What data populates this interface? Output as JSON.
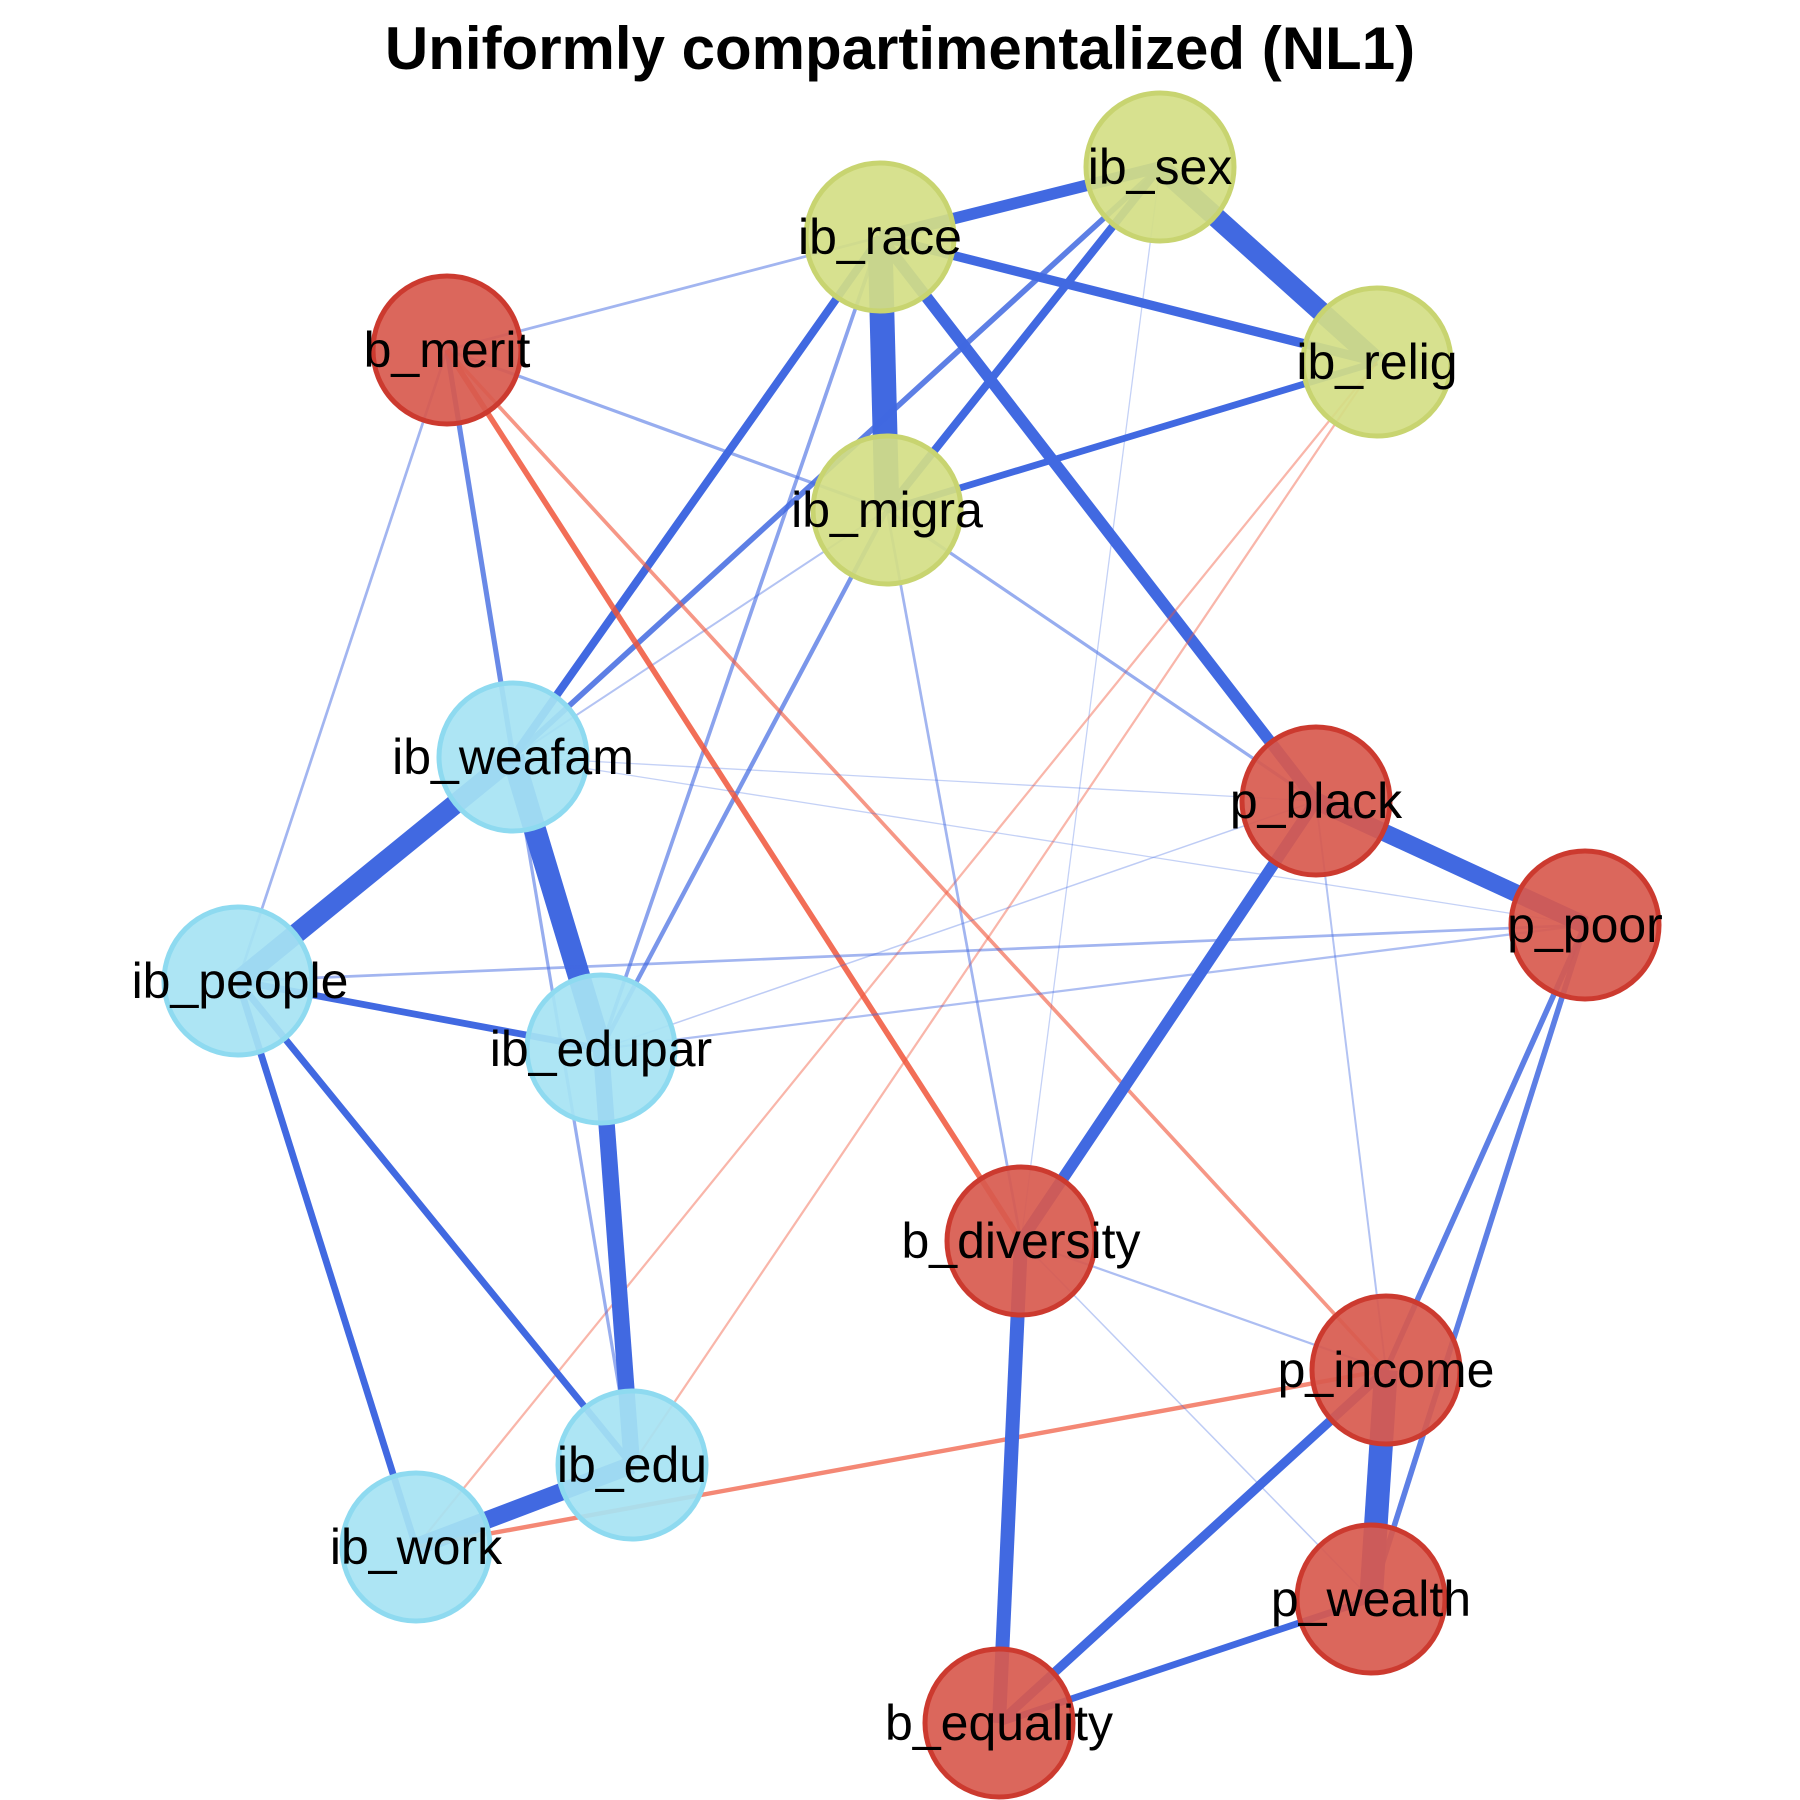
{
  "title": "Uniformly compartimentalized (NL1)",
  "colors": {
    "positive_edge": "#4169E1",
    "negative_edge": "#F0553A",
    "group_b_p": "#D85A4E",
    "group_b_p_border": "#CC3A2F",
    "group_ib_green": "#D4DE85",
    "group_ib_green_border": "#C8D470",
    "group_ib_blue": "#A6E3F3",
    "group_ib_blue_border": "#8EDAF0"
  },
  "nodes": [
    {
      "id": "ib_sex",
      "label": "ib_sex",
      "group": "ib_green"
    },
    {
      "id": "ib_race",
      "label": "ib_race",
      "group": "ib_green"
    },
    {
      "id": "b_merit",
      "label": "b_merit",
      "group": "b_p"
    },
    {
      "id": "ib_relig",
      "label": "ib_relig",
      "group": "ib_green"
    },
    {
      "id": "ib_migra",
      "label": "ib_migra",
      "group": "ib_green"
    },
    {
      "id": "ib_weafam",
      "label": "ib_weafam",
      "group": "ib_blue"
    },
    {
      "id": "p_black",
      "label": "p_black",
      "group": "b_p"
    },
    {
      "id": "p_poor",
      "label": "p_poor",
      "group": "b_p"
    },
    {
      "id": "ib_people",
      "label": "ib_people",
      "group": "ib_blue"
    },
    {
      "id": "ib_edupar",
      "label": "ib_edupar",
      "group": "ib_blue"
    },
    {
      "id": "b_diversity",
      "label": "b_diversity",
      "group": "b_p"
    },
    {
      "id": "p_income",
      "label": "p_income",
      "group": "b_p"
    },
    {
      "id": "ib_edu",
      "label": "ib_edu",
      "group": "ib_blue"
    },
    {
      "id": "ib_work",
      "label": "ib_work",
      "group": "ib_blue"
    },
    {
      "id": "p_wealth",
      "label": "p_wealth",
      "group": "b_p"
    },
    {
      "id": "b_equality",
      "label": "b_equality",
      "group": "b_p"
    }
  ],
  "edges": [
    {
      "from": "ib_race",
      "to": "ib_sex",
      "sign": "+",
      "weight": 0.45
    },
    {
      "from": "ib_sex",
      "to": "ib_relig",
      "sign": "+",
      "weight": 0.8
    },
    {
      "from": "ib_race",
      "to": "ib_relig",
      "sign": "+",
      "weight": 0.35
    },
    {
      "from": "ib_race",
      "to": "ib_migra",
      "sign": "+",
      "weight": 1.0
    },
    {
      "from": "ib_sex",
      "to": "ib_migra",
      "sign": "+",
      "weight": 0.3
    },
    {
      "from": "ib_relig",
      "to": "ib_migra",
      "sign": "+",
      "weight": 0.25
    },
    {
      "from": "ib_race",
      "to": "b_merit",
      "sign": "+",
      "weight": 0.08
    },
    {
      "from": "ib_race",
      "to": "p_black",
      "sign": "+",
      "weight": 0.45
    },
    {
      "from": "ib_race",
      "to": "ib_weafam",
      "sign": "+",
      "weight": 0.3
    },
    {
      "from": "ib_race",
      "to": "ib_edupar",
      "sign": "+",
      "weight": 0.12
    },
    {
      "from": "ib_sex",
      "to": "ib_weafam",
      "sign": "+",
      "weight": 0.2
    },
    {
      "from": "ib_sex",
      "to": "b_diversity",
      "sign": "+",
      "weight": 0.02
    },
    {
      "from": "ib_relig",
      "to": "ib_work",
      "sign": "-",
      "weight": 0.06
    },
    {
      "from": "ib_relig",
      "to": "ib_edu",
      "sign": "-",
      "weight": 0.06
    },
    {
      "from": "ib_migra",
      "to": "b_merit",
      "sign": "+",
      "weight": 0.1
    },
    {
      "from": "ib_migra",
      "to": "p_black",
      "sign": "+",
      "weight": 0.1
    },
    {
      "from": "ib_migra",
      "to": "b_diversity",
      "sign": "+",
      "weight": 0.08
    },
    {
      "from": "ib_migra",
      "to": "ib_edupar",
      "sign": "+",
      "weight": 0.15
    },
    {
      "from": "ib_migra",
      "to": "ib_weafam",
      "sign": "+",
      "weight": 0.05
    },
    {
      "from": "b_merit",
      "to": "ib_weafam",
      "sign": "+",
      "weight": 0.18
    },
    {
      "from": "b_merit",
      "to": "ib_people",
      "sign": "+",
      "weight": 0.08
    },
    {
      "from": "b_merit",
      "to": "b_diversity",
      "sign": "-",
      "weight": 0.2
    },
    {
      "from": "b_merit",
      "to": "p_income",
      "sign": "-",
      "weight": 0.12
    },
    {
      "from": "ib_weafam",
      "to": "ib_people",
      "sign": "+",
      "weight": 0.8
    },
    {
      "from": "ib_weafam",
      "to": "ib_edupar",
      "sign": "+",
      "weight": 0.9
    },
    {
      "from": "ib_weafam",
      "to": "ib_edu",
      "sign": "+",
      "weight": 0.1
    },
    {
      "from": "ib_weafam",
      "to": "p_poor",
      "sign": "+",
      "weight": 0.02
    },
    {
      "from": "ib_weafam",
      "to": "p_black",
      "sign": "+",
      "weight": 0.02
    },
    {
      "from": "ib_people",
      "to": "ib_edupar",
      "sign": "+",
      "weight": 0.25
    },
    {
      "from": "ib_people",
      "to": "ib_edu",
      "sign": "+",
      "weight": 0.25
    },
    {
      "from": "ib_people",
      "to": "ib_work",
      "sign": "+",
      "weight": 0.25
    },
    {
      "from": "ib_people",
      "to": "p_poor",
      "sign": "+",
      "weight": 0.08
    },
    {
      "from": "ib_edupar",
      "to": "ib_edu",
      "sign": "+",
      "weight": 0.65
    },
    {
      "from": "ib_edupar",
      "to": "p_poor",
      "sign": "+",
      "weight": 0.06
    },
    {
      "from": "ib_edupar",
      "to": "p_black",
      "sign": "+",
      "weight": 0.03
    },
    {
      "from": "ib_edu",
      "to": "ib_work",
      "sign": "+",
      "weight": 0.7
    },
    {
      "from": "ib_work",
      "to": "p_income",
      "sign": "-",
      "weight": 0.15
    },
    {
      "from": "p_black",
      "to": "p_poor",
      "sign": "+",
      "weight": 0.7
    },
    {
      "from": "p_black",
      "to": "b_diversity",
      "sign": "+",
      "weight": 0.45
    },
    {
      "from": "p_black",
      "to": "p_income",
      "sign": "+",
      "weight": 0.05
    },
    {
      "from": "p_poor",
      "to": "p_income",
      "sign": "+",
      "weight": 0.2
    },
    {
      "from": "p_poor",
      "to": "p_wealth",
      "sign": "+",
      "weight": 0.2
    },
    {
      "from": "b_diversity",
      "to": "b_equality",
      "sign": "+",
      "weight": 0.55
    },
    {
      "from": "b_diversity",
      "to": "p_income",
      "sign": "+",
      "weight": 0.06
    },
    {
      "from": "b_diversity",
      "to": "p_wealth",
      "sign": "+",
      "weight": 0.03
    },
    {
      "from": "p_income",
      "to": "p_wealth",
      "sign": "+",
      "weight": 0.95
    },
    {
      "from": "p_income",
      "to": "b_equality",
      "sign": "+",
      "weight": 0.35
    },
    {
      "from": "p_wealth",
      "to": "b_equality",
      "sign": "+",
      "weight": 0.25
    }
  ]
}
